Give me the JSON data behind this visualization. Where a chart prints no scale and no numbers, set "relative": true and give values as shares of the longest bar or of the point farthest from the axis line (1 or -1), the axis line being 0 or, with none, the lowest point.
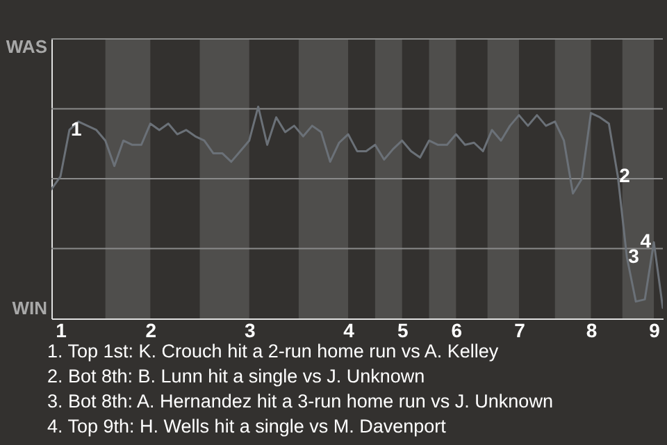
{
  "chart_data": {
    "type": "line",
    "relative": true,
    "categories": [
      null,
      "1",
      null,
      null,
      null,
      null,
      null,
      null,
      null,
      null,
      null,
      "2",
      null,
      null,
      null,
      null,
      null,
      null,
      null,
      null,
      null,
      null,
      "3",
      null,
      null,
      null,
      null,
      null,
      null,
      null,
      null,
      null,
      null,
      "4",
      null,
      null,
      null,
      null,
      null,
      "5",
      null,
      null,
      null,
      null,
      null,
      "6",
      null,
      null,
      null,
      null,
      null,
      null,
      "7",
      null,
      null,
      null,
      null,
      null,
      null,
      null,
      "8",
      null,
      null,
      null,
      null,
      null,
      null,
      "9",
      null
    ],
    "series": [
      {
        "color": "#6b7178",
        "values": [
          0.61,
          0.67,
          0.89,
          0.93,
          0.91,
          0.89,
          0.84,
          0.72,
          0.84,
          0.82,
          0.82,
          0.92,
          0.89,
          0.92,
          0.87,
          0.89,
          0.86,
          0.84,
          0.78,
          0.78,
          0.74,
          0.79,
          0.84,
          1,
          0.82,
          0.95,
          0.88,
          0.91,
          0.86,
          0.91,
          0.88,
          0.74,
          0.83,
          0.87,
          0.79,
          0.79,
          0.82,
          0.75,
          0.8,
          0.84,
          0.79,
          0.76,
          0.84,
          0.82,
          0.82,
          0.87,
          0.82,
          0.83,
          0.79,
          0.89,
          0.84,
          0.91,
          0.96,
          0.91,
          0.96,
          0.91,
          0.93,
          0.84,
          0.59,
          0.66,
          0.97,
          0.95,
          0.92,
          0.67,
          0.29,
          0.08,
          0.09,
          0.36,
          0.05
        ]
      }
    ],
    "line_style": "solid",
    "ref_lines": [
      {
        "axis": "y",
        "value": 0.33,
        "color": "#8a8a8a"
      },
      {
        "axis": "y",
        "value": 0.66,
        "color": "#8a8a8a"
      },
      {
        "axis": "y",
        "value": 0.99,
        "color": "#8a8a8a"
      },
      {
        "axis": "y",
        "value": 1.32,
        "color": "#8a8a8a"
      }
    ],
    "annotations": [
      {
        "text": "1",
        "y": 0.89
      },
      {
        "text": "2",
        "y": 0.67
      },
      {
        "text": "3",
        "y": 0.29
      },
      {
        "text": "4",
        "y": 0.36
      },
      "WAS",
      "WIN",
      "1. Top 1st: K. Crouch hit a 2-run home run vs A. Kelley",
      "2. Bot 8th: B. Lunn hit a single vs J. Unknown",
      "3. Bot 8th: A. Hernandez hit a 3-run home run vs J. Unknown",
      "4. Top 9th: H. Wells hit a single vs M. Davenport"
    ]
  }
}
